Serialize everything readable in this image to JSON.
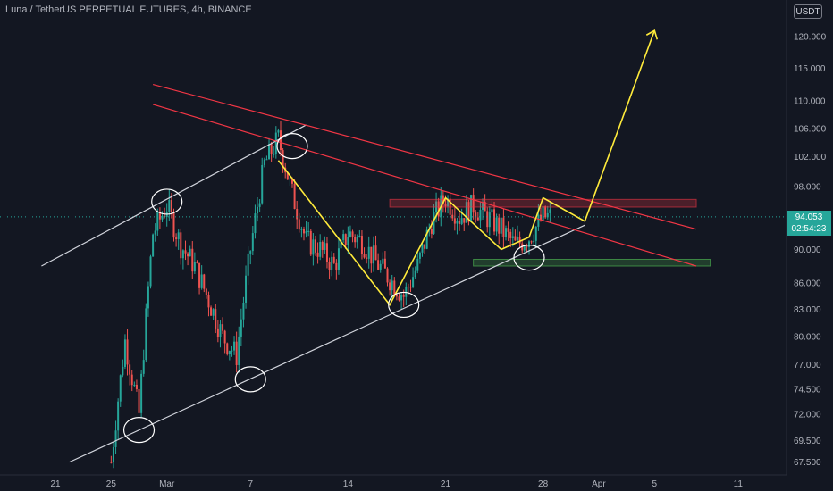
{
  "header": {
    "symbol_title": "Luna / TetherUS PERPETUAL FUTURES, 4h, BINANCE",
    "currency": "USDT"
  },
  "price_tag": {
    "price": "94.053",
    "countdown": "02:54:23"
  },
  "colors": {
    "background": "#131722",
    "up_candle": "#26a69a",
    "down_candle": "#ef5350",
    "trendline_white": "#d1d4dc",
    "channel_red": "#f23645",
    "projection_yellow": "#ffeb3b"
  },
  "chart_data": {
    "type": "candlestick",
    "title": "Luna / TetherUS PERPETUAL FUTURES, 4h, BINANCE",
    "y_scale": "log",
    "ylim": [
      66.5,
      125.5
    ],
    "y_ticks": [
      "120.000",
      "115.000",
      "110.000",
      "106.000",
      "102.000",
      "98.000",
      "90.000",
      "86.000",
      "83.000",
      "80.000",
      "77.000",
      "74.500",
      "72.000",
      "69.500",
      "67.500"
    ],
    "x_ticks": [
      "21",
      "25",
      "Mar",
      "7",
      "14",
      "21",
      "28",
      "Apr",
      "5",
      "11"
    ],
    "current_price": 94.053,
    "price_path": [
      [
        "2022-02-25",
        67.5
      ],
      [
        "2022-02-26",
        79.5
      ],
      [
        "2022-02-27",
        72.0
      ],
      [
        "2022-02-28",
        92.0
      ],
      [
        "2022-03-01",
        95.5
      ],
      [
        "2022-03-02",
        90.5
      ],
      [
        "2022-03-03",
        88.0
      ],
      [
        "2022-03-04",
        84.0
      ],
      [
        "2022-03-05",
        80.0
      ],
      [
        "2022-03-06",
        78.0
      ],
      [
        "2022-03-07",
        90.0
      ],
      [
        "2022-03-08",
        101.0
      ],
      [
        "2022-03-09",
        104.5
      ],
      [
        "2022-03-10",
        97.0
      ],
      [
        "2022-03-11",
        91.0
      ],
      [
        "2022-03-12",
        90.0
      ],
      [
        "2022-03-13",
        88.0
      ],
      [
        "2022-03-14",
        92.0
      ],
      [
        "2022-03-15",
        91.0
      ],
      [
        "2022-03-16",
        88.5
      ],
      [
        "2022-03-17",
        86.5
      ],
      [
        "2022-03-18",
        84.5
      ],
      [
        "2022-03-19",
        88.0
      ],
      [
        "2022-03-20",
        93.5
      ],
      [
        "2022-03-21",
        96.5
      ],
      [
        "2022-03-22",
        94.0
      ],
      [
        "2022-03-23",
        95.5
      ],
      [
        "2022-03-24",
        94.0
      ],
      [
        "2022-03-25",
        92.5
      ],
      [
        "2022-03-26",
        90.5
      ],
      [
        "2022-03-27",
        91.5
      ],
      [
        "2022-03-28",
        94.053
      ]
    ],
    "zones": [
      {
        "color": "red",
        "ymin": 95.3,
        "ymax": 96.3,
        "x_start": "2022-03-17",
        "x_end": "2022-04-08"
      },
      {
        "color": "green",
        "ymin": 88.0,
        "ymax": 88.8,
        "x_start": "2022-03-23",
        "x_end": "2022-04-09"
      }
    ],
    "trendlines": [
      {
        "color": "white",
        "points": [
          [
            "2022-02-20",
            88.0
          ],
          [
            "2022-03-11",
            106.5
          ]
        ]
      },
      {
        "color": "white",
        "points": [
          [
            "2022-02-22",
            67.5
          ],
          [
            "2022-03-31",
            93.0
          ]
        ]
      },
      {
        "color": "red",
        "points": [
          [
            "2022-02-28",
            112.5
          ],
          [
            "2022-04-08",
            92.5
          ]
        ]
      },
      {
        "color": "red",
        "points": [
          [
            "2022-02-28",
            109.5
          ],
          [
            "2022-04-08",
            88.0
          ]
        ]
      }
    ],
    "projection_path": [
      [
        "2022-03-09",
        101.5
      ],
      [
        "2022-03-17",
        83.5
      ],
      [
        "2022-03-21",
        96.5
      ],
      [
        "2022-03-25",
        90.0
      ],
      [
        "2022-03-27",
        91.5
      ],
      [
        "2022-03-28",
        96.5
      ],
      [
        "2022-03-31",
        93.5
      ],
      [
        "2022-04-05",
        121.0
      ]
    ],
    "highlight_circles": [
      [
        "2022-03-01",
        96.0
      ],
      [
        "2022-03-10",
        103.5
      ],
      [
        "2022-03-18",
        83.5
      ],
      [
        "2022-03-27",
        89.0
      ],
      [
        "2022-03-07",
        75.5
      ],
      [
        "2022-02-27",
        70.5
      ]
    ]
  }
}
